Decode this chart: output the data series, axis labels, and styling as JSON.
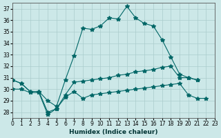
{
  "xlabel": "Humidex (Indice chaleur)",
  "background_color": "#cce8e8",
  "grid_color": "#aacccc",
  "line_color": "#006666",
  "xlim": [
    0,
    23
  ],
  "ylim": [
    27.5,
    37.5
  ],
  "yticks": [
    28,
    29,
    30,
    31,
    32,
    33,
    34,
    35,
    36,
    37
  ],
  "xticks": [
    0,
    1,
    2,
    3,
    4,
    5,
    6,
    7,
    8,
    9,
    10,
    11,
    12,
    13,
    14,
    15,
    16,
    17,
    18,
    19,
    20,
    21,
    22,
    23
  ],
  "line1_x": [
    0,
    1,
    2,
    3,
    4,
    5,
    6,
    7,
    8,
    9,
    10,
    11,
    12,
    13,
    14,
    15,
    16,
    17,
    18,
    19,
    20,
    21
  ],
  "line1_y": [
    30.8,
    30.5,
    29.8,
    29.8,
    29.0,
    28.5,
    30.8,
    32.9,
    35.3,
    35.2,
    35.5,
    36.2,
    36.1,
    37.2,
    36.2,
    35.7,
    35.5,
    34.3,
    32.8,
    31.3,
    31.0,
    30.8
  ],
  "line2_x": [
    0,
    1,
    2,
    3,
    4,
    5,
    6,
    7,
    8,
    9,
    10,
    11,
    12,
    13,
    14,
    15,
    16,
    17,
    18,
    19,
    20,
    21
  ],
  "line2_y": [
    30.8,
    30.5,
    29.8,
    29.8,
    28.0,
    28.3,
    29.5,
    30.6,
    30.7,
    30.8,
    30.9,
    31.0,
    31.2,
    31.3,
    31.5,
    31.6,
    31.7,
    31.9,
    32.0,
    31.0,
    31.0,
    30.8
  ],
  "line3_x": [
    0,
    1,
    2,
    3,
    4,
    5,
    6,
    7,
    8,
    9,
    10,
    11,
    12,
    13,
    14,
    15,
    16,
    17,
    18,
    19,
    20,
    21,
    22
  ],
  "line3_y": [
    30.0,
    30.0,
    29.7,
    29.7,
    27.8,
    28.3,
    29.3,
    29.8,
    29.2,
    29.5,
    29.6,
    29.7,
    29.8,
    29.9,
    30.0,
    30.1,
    30.2,
    30.3,
    30.4,
    30.5,
    29.5,
    29.2,
    29.2
  ]
}
